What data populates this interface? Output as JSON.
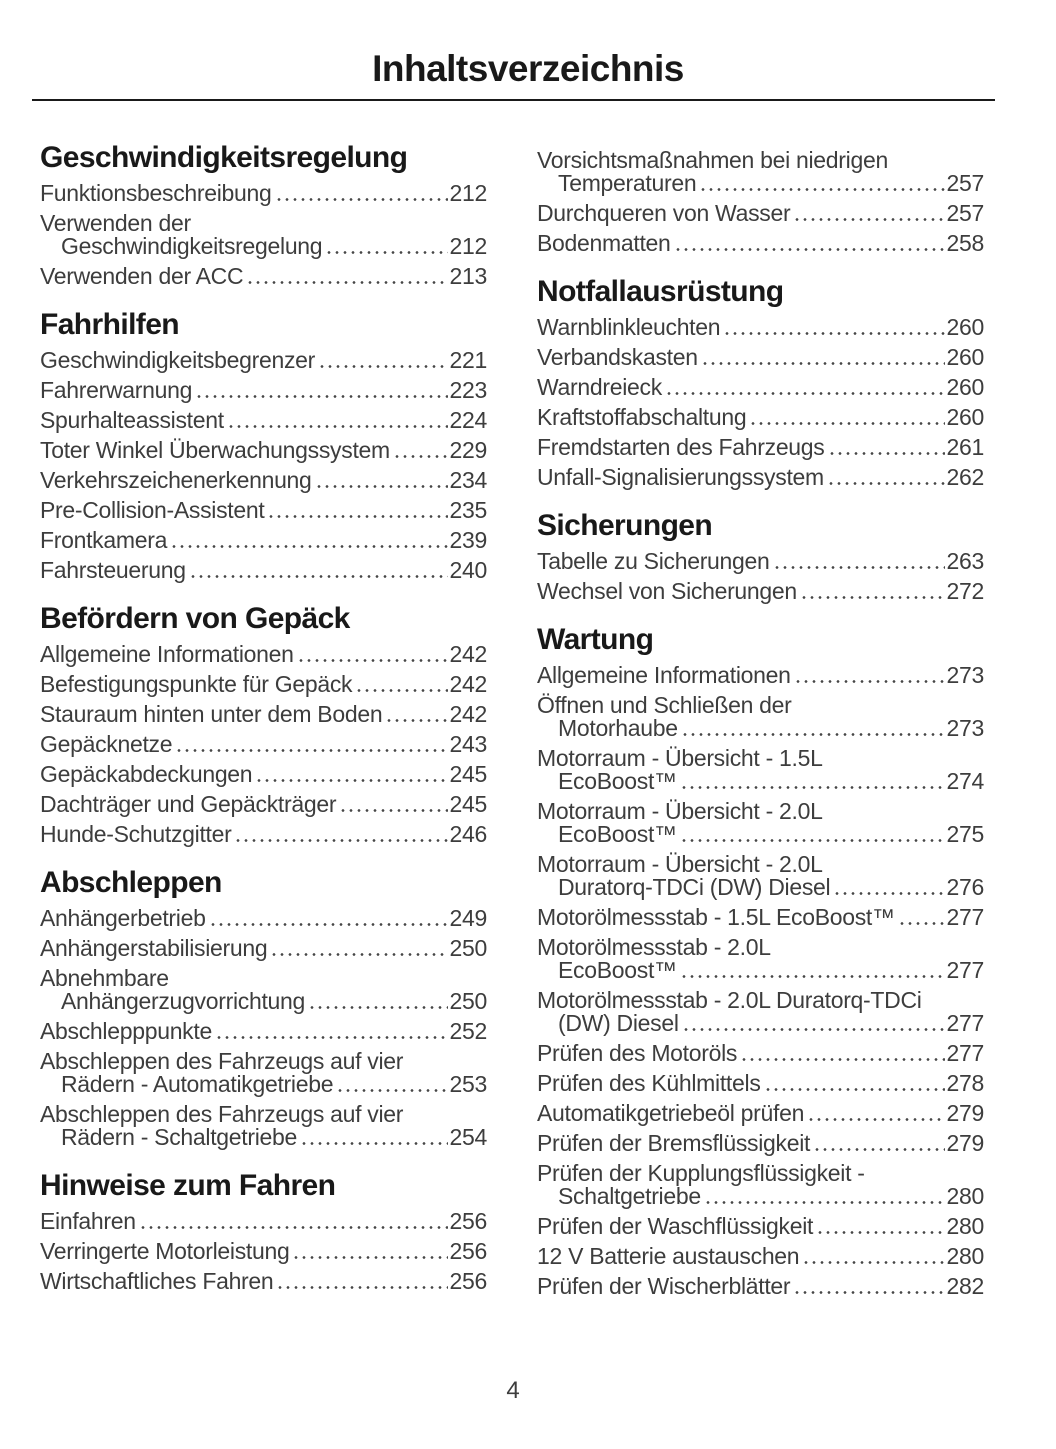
{
  "page": {
    "title": "Inhaltsverzeichnis",
    "page_number": "4"
  },
  "toc": {
    "columns": [
      {
        "blocks": [
          {
            "heading": "Geschwindigkeitsregelung",
            "entries": [
              {
                "lines": [
                  "Funktionsbeschreibung"
                ],
                "page": "212"
              },
              {
                "lines": [
                  "Verwenden der",
                  "Geschwindigkeitsregelung"
                ],
                "page": "212"
              },
              {
                "lines": [
                  "Verwenden der ACC"
                ],
                "page": "213"
              }
            ]
          },
          {
            "heading": "Fahrhilfen",
            "entries": [
              {
                "lines": [
                  "Geschwindigkeitsbegrenzer "
                ],
                "page": "221"
              },
              {
                "lines": [
                  "Fahrerwarnung"
                ],
                "page": "223"
              },
              {
                "lines": [
                  "Spurhalteassistent"
                ],
                "page": "224"
              },
              {
                "lines": [
                  "Toter Winkel Überwachungssystem"
                ],
                "page": "229"
              },
              {
                "lines": [
                  "Verkehrszeichenerkennung"
                ],
                "page": "234"
              },
              {
                "lines": [
                  "Pre-Collision-Assistent"
                ],
                "page": "235"
              },
              {
                "lines": [
                  "Frontkamera"
                ],
                "page": "239"
              },
              {
                "lines": [
                  "Fahrsteuerung"
                ],
                "page": "240"
              }
            ]
          },
          {
            "heading": "Befördern von Gepäck",
            "entries": [
              {
                "lines": [
                  "Allgemeine Informationen"
                ],
                "page": "242"
              },
              {
                "lines": [
                  "Befestigungspunkte für Gepäck"
                ],
                "page": "242"
              },
              {
                "lines": [
                  "Stauraum hinten unter dem Boden"
                ],
                "page": "242"
              },
              {
                "lines": [
                  "Gepäcknetze"
                ],
                "page": "243"
              },
              {
                "lines": [
                  "Gepäckabdeckungen"
                ],
                "page": "245"
              },
              {
                "lines": [
                  "Dachträger und Gepäckträger"
                ],
                "page": "245"
              },
              {
                "lines": [
                  "Hunde-Schutzgitter"
                ],
                "page": "246"
              }
            ]
          },
          {
            "heading": "Abschleppen",
            "entries": [
              {
                "lines": [
                  "Anhängerbetrieb"
                ],
                "page": "249"
              },
              {
                "lines": [
                  "Anhängerstabilisierung"
                ],
                "page": "250"
              },
              {
                "lines": [
                  "Abnehmbare",
                  "Anhängerzugvorrichtung"
                ],
                "page": "250"
              },
              {
                "lines": [
                  "Abschlepppunkte"
                ],
                "page": "252"
              },
              {
                "lines": [
                  "Abschleppen des Fahrzeugs auf vier",
                  "Rädern - Automatikgetriebe"
                ],
                "page": "253"
              },
              {
                "lines": [
                  "Abschleppen des Fahrzeugs auf vier",
                  "Rädern - Schaltgetriebe"
                ],
                "page": "254"
              }
            ]
          },
          {
            "heading": "Hinweise zum Fahren",
            "entries": [
              {
                "lines": [
                  "Einfahren"
                ],
                "page": "256"
              },
              {
                "lines": [
                  "Verringerte Motorleistung"
                ],
                "page": "256"
              },
              {
                "lines": [
                  "Wirtschaftliches Fahren"
                ],
                "page": "256"
              }
            ]
          }
        ]
      },
      {
        "blocks": [
          {
            "heading": null,
            "entries": [
              {
                "lines": [
                  "Vorsichtsmaßnahmen bei niedrigen",
                  "Temperaturen"
                ],
                "page": "257"
              },
              {
                "lines": [
                  "Durchqueren von Wasser"
                ],
                "page": "257"
              },
              {
                "lines": [
                  "Bodenmatten"
                ],
                "page": "258"
              }
            ]
          },
          {
            "heading": "Notfallausrüstung",
            "entries": [
              {
                "lines": [
                  "Warnblinkleuchten"
                ],
                "page": "260"
              },
              {
                "lines": [
                  "Verbandskasten"
                ],
                "page": "260"
              },
              {
                "lines": [
                  "Warndreieck"
                ],
                "page": "260"
              },
              {
                "lines": [
                  "Kraftstoffabschaltung"
                ],
                "page": "260"
              },
              {
                "lines": [
                  "Fremdstarten des Fahrzeugs"
                ],
                "page": "261"
              },
              {
                "lines": [
                  "Unfall-Signalisierungssystem"
                ],
                "page": "262"
              }
            ]
          },
          {
            "heading": "Sicherungen",
            "entries": [
              {
                "lines": [
                  "Tabelle zu Sicherungen"
                ],
                "page": "263"
              },
              {
                "lines": [
                  "Wechsel von Sicherungen"
                ],
                "page": "272"
              }
            ]
          },
          {
            "heading": "Wartung",
            "entries": [
              {
                "lines": [
                  "Allgemeine Informationen"
                ],
                "page": "273"
              },
              {
                "lines": [
                  "Öffnen und Schließen der",
                  "Motorhaube"
                ],
                "page": "273"
              },
              {
                "lines": [
                  "Motorraum - Übersicht - 1.5L",
                  "EcoBoost™ "
                ],
                "page": "274"
              },
              {
                "lines": [
                  "Motorraum - Übersicht - 2.0L",
                  "EcoBoost™ "
                ],
                "page": "275"
              },
              {
                "lines": [
                  "Motorraum - Übersicht - 2.0L",
                  "Duratorq-TDCi (DW) Diesel"
                ],
                "page": "276"
              },
              {
                "lines": [
                  "Motorölmessstab - 1.5L EcoBoost™ "
                ],
                "page": "277"
              },
              {
                "lines": [
                  "Motorölmessstab - 2.0L",
                  "EcoBoost™ "
                ],
                "page": "277"
              },
              {
                "lines": [
                  "Motorölmessstab - 2.0L Duratorq-TDCi",
                  "(DW) Diesel"
                ],
                "page": "277"
              },
              {
                "lines": [
                  "Prüfen des Motoröls"
                ],
                "page": "277"
              },
              {
                "lines": [
                  "Prüfen des Kühlmittels"
                ],
                "page": "278"
              },
              {
                "lines": [
                  "Automatikgetriebeöl prüfen"
                ],
                "page": "279"
              },
              {
                "lines": [
                  "Prüfen der Bremsflüssigkeit"
                ],
                "page": "279"
              },
              {
                "lines": [
                  "Prüfen der Kupplungsflüssigkeit -",
                  "Schaltgetriebe"
                ],
                "page": "280"
              },
              {
                "lines": [
                  "Prüfen der Waschflüssigkeit"
                ],
                "page": "280"
              },
              {
                "lines": [
                  "12 V Batterie austauschen "
                ],
                "page": "280"
              },
              {
                "lines": [
                  "Prüfen der Wischerblätter"
                ],
                "page": "282"
              }
            ]
          }
        ]
      }
    ]
  }
}
